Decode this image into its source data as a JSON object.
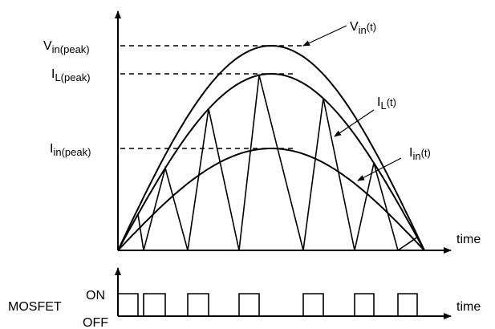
{
  "labels": {
    "vin_peak_main": "V",
    "vin_peak_sub": "in(peak)",
    "il_peak_main": "I",
    "il_peak_sub": "L(peak)",
    "iin_peak_main": "I",
    "iin_peak_sub": "in(peak)",
    "vin_t_main": "V",
    "vin_t_sub": "in",
    "vin_t_arg": "(t)",
    "il_t_main": "I",
    "il_t_sub": "L",
    "il_t_arg": "(t)",
    "iin_t_main": "I",
    "iin_t_sub": "in",
    "iin_t_arg": "(t)",
    "time_top": "time",
    "time_bottom": "time",
    "mosfet": "MOSFET",
    "on": "ON",
    "off": "OFF"
  },
  "colors": {
    "stroke": "#000000",
    "background": "#ffffff"
  }
}
